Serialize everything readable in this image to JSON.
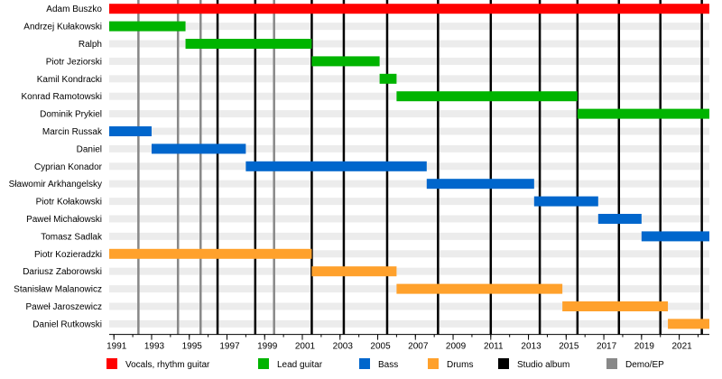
{
  "chart_data": {
    "type": "timeline",
    "title": "",
    "xlabel": "",
    "ylabel": "",
    "xlim": [
      1990.75,
      2022.6
    ],
    "x_ticks": [
      1991,
      1993,
      1995,
      1997,
      1999,
      2001,
      2003,
      2005,
      2007,
      2009,
      2011,
      2013,
      2015,
      2017,
      2019,
      2021
    ],
    "minor_x_ticks_every": 1,
    "grid": "alternating-row-bands",
    "legend_position": "bottom",
    "roles": [
      {
        "key": "vocals",
        "name": "Vocals, rhythm guitar",
        "color": "#ff0000"
      },
      {
        "key": "lead",
        "name": "Lead guitar",
        "color": "#00b400"
      },
      {
        "key": "bass",
        "name": "Bass",
        "color": "#0066cc"
      },
      {
        "key": "drums",
        "name": "Drums",
        "color": "#ffa12c"
      },
      {
        "key": "studio",
        "name": "Studio album",
        "color": "#000000"
      },
      {
        "key": "demo",
        "name": "Demo/EP",
        "color": "#888888"
      }
    ],
    "members": [
      {
        "name": "Adam Buszko",
        "role": "vocals",
        "start": 1990.75,
        "end": 2022.6
      },
      {
        "name": "Andrzej Kułakowski",
        "role": "lead",
        "start": 1990.75,
        "end": 1994.8
      },
      {
        "name": "Ralph",
        "role": "lead",
        "start": 1994.8,
        "end": 2001.5
      },
      {
        "name": "Piotr Jeziorski",
        "role": "lead",
        "start": 2001.5,
        "end": 2005.1
      },
      {
        "name": "Kamil Kondracki",
        "role": "lead",
        "start": 2005.1,
        "end": 2006.0
      },
      {
        "name": "Konrad Ramotowski",
        "role": "lead",
        "start": 2006.0,
        "end": 2015.6
      },
      {
        "name": "Dominik Prykiel",
        "role": "lead",
        "start": 2015.6,
        "end": 2022.6
      },
      {
        "name": "Marcin Russak",
        "role": "bass",
        "start": 1990.75,
        "end": 1993.0
      },
      {
        "name": "Daniel",
        "role": "bass",
        "start": 1993.0,
        "end": 1998.0
      },
      {
        "name": "Cyprian Konador",
        "role": "bass",
        "start": 1998.0,
        "end": 2007.6
      },
      {
        "name": "Sławomir Arkhangelsky",
        "role": "bass",
        "start": 2007.6,
        "end": 2013.3
      },
      {
        "name": "Piotr Kołakowski",
        "role": "bass",
        "start": 2013.3,
        "end": 2016.7
      },
      {
        "name": "Paweł Michałowski",
        "role": "bass",
        "start": 2016.7,
        "end": 2019.0
      },
      {
        "name": "Tomasz Sadlak",
        "role": "bass",
        "start": 2019.0,
        "end": 2022.6
      },
      {
        "name": "Piotr Kozieradzki",
        "role": "drums",
        "start": 1990.75,
        "end": 2001.5
      },
      {
        "name": "Dariusz Zaborowski",
        "role": "drums",
        "start": 2001.5,
        "end": 2006.0
      },
      {
        "name": "Stanisław Malanowicz",
        "role": "drums",
        "start": 2006.0,
        "end": 2014.8
      },
      {
        "name": "Paweł Jaroszewicz",
        "role": "drums",
        "start": 2014.8,
        "end": 2020.4
      },
      {
        "name": "Daniel Rutkowski",
        "role": "drums",
        "start": 2020.4,
        "end": 2022.6
      }
    ],
    "studio_albums": [
      1996.5,
      1998.5,
      2001.5,
      2003.2,
      2005.5,
      2008.2,
      2011.0,
      2013.6,
      2015.6,
      2017.8,
      2020.0,
      2022.2
    ],
    "demos": [
      1992.3,
      1994.4,
      1995.6,
      1999.5
    ]
  }
}
